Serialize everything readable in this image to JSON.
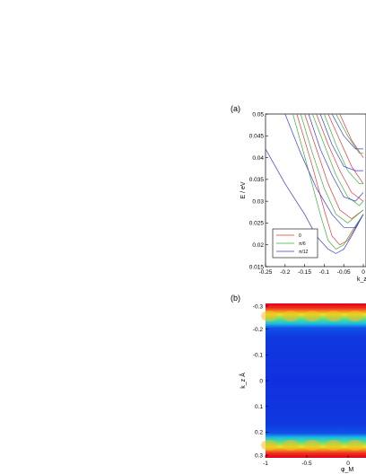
{
  "chart_data": [
    {
      "panel_label": "(a)",
      "type": "line",
      "xlabel": "k_z Å",
      "ylabel": "E / eV",
      "xlim": [
        -0.25,
        0.0
      ],
      "ylim": [
        0.015,
        0.05
      ],
      "x_ticks": [
        "-0.25",
        "-0.2",
        "-0.15",
        "-0.1",
        "-0.05",
        "0"
      ],
      "y_ticks": [
        "0.015",
        "0.02",
        "0.025",
        "0.03",
        "0.035",
        "0.04",
        "0.045",
        "0.05"
      ],
      "legend_position": "bottom-left",
      "legend": [
        {
          "label": "0",
          "color": "#e03a3a"
        },
        {
          "label": "π/6",
          "color": "#3ab03a"
        },
        {
          "label": "π/12",
          "color": "#3a3ae0"
        }
      ],
      "series": [
        {
          "color": "#e03a3a",
          "x": [
            -0.17,
            -0.13,
            -0.1,
            -0.08,
            -0.06,
            -0.04,
            -0.02,
            0.0
          ],
          "y": [
            0.05,
            0.038,
            0.028,
            0.022,
            0.02,
            0.021,
            0.024,
            0.027
          ]
        },
        {
          "color": "#3ab03a",
          "x": [
            -0.18,
            -0.14,
            -0.11,
            -0.09,
            -0.07,
            -0.05,
            -0.03,
            0.0
          ],
          "y": [
            0.05,
            0.037,
            0.027,
            0.021,
            0.019,
            0.02,
            0.023,
            0.027
          ]
        },
        {
          "color": "#3a3ae0",
          "x": [
            -0.25,
            -0.2,
            -0.15,
            -0.12,
            -0.09,
            -0.07,
            -0.05,
            -0.03,
            0.0
          ],
          "y": [
            0.042,
            0.034,
            0.027,
            0.022,
            0.019,
            0.018,
            0.019,
            0.022,
            0.027
          ]
        },
        {
          "color": "#e03a3a",
          "x": [
            -0.15,
            -0.12,
            -0.09,
            -0.06,
            -0.03,
            0.0
          ],
          "y": [
            0.05,
            0.042,
            0.034,
            0.028,
            0.026,
            0.028
          ]
        },
        {
          "color": "#3ab03a",
          "x": [
            -0.16,
            -0.13,
            -0.1,
            -0.07,
            -0.04,
            0.0
          ],
          "y": [
            0.05,
            0.041,
            0.033,
            0.027,
            0.025,
            0.028
          ]
        },
        {
          "color": "#3a3ae0",
          "x": [
            -0.2,
            -0.16,
            -0.12,
            -0.08,
            -0.05,
            -0.02,
            0.0
          ],
          "y": [
            0.05,
            0.041,
            0.033,
            0.027,
            0.024,
            0.024,
            0.027
          ]
        },
        {
          "color": "#e03a3a",
          "x": [
            -0.12,
            -0.09,
            -0.06,
            -0.03,
            0.0
          ],
          "y": [
            0.05,
            0.043,
            0.037,
            0.032,
            0.03
          ]
        },
        {
          "color": "#3ab03a",
          "x": [
            -0.13,
            -0.1,
            -0.07,
            -0.04,
            -0.01,
            0.0
          ],
          "y": [
            0.05,
            0.043,
            0.036,
            0.031,
            0.029,
            0.03
          ]
        },
        {
          "color": "#3a3ae0",
          "x": [
            -0.14,
            -0.11,
            -0.08,
            -0.05,
            -0.02,
            0.0
          ],
          "y": [
            0.05,
            0.042,
            0.036,
            0.031,
            0.03,
            0.032
          ]
        },
        {
          "color": "#e03a3a",
          "x": [
            -0.09,
            -0.06,
            -0.03,
            0.0
          ],
          "y": [
            0.05,
            0.044,
            0.038,
            0.034
          ]
        },
        {
          "color": "#3ab03a",
          "x": [
            -0.1,
            -0.07,
            -0.04,
            -0.01,
            0.0
          ],
          "y": [
            0.05,
            0.043,
            0.037,
            0.034,
            0.034
          ]
        },
        {
          "color": "#3a3ae0",
          "x": [
            -0.11,
            -0.08,
            -0.05,
            -0.02,
            0.0
          ],
          "y": [
            0.05,
            0.043,
            0.038,
            0.037,
            0.037
          ]
        },
        {
          "color": "#e03a3a",
          "x": [
            -0.06,
            -0.03,
            0.0
          ],
          "y": [
            0.05,
            0.044,
            0.04
          ]
        },
        {
          "color": "#3ab03a",
          "x": [
            -0.07,
            -0.04,
            -0.01,
            0.0
          ],
          "y": [
            0.05,
            0.045,
            0.041,
            0.041
          ]
        },
        {
          "color": "#3a3ae0",
          "x": [
            -0.08,
            -0.05,
            -0.02,
            0.0
          ],
          "y": [
            0.05,
            0.045,
            0.042,
            0.042
          ]
        }
      ]
    },
    {
      "panel_label": "(b)",
      "type": "heatmap",
      "xlabel": "φ_M",
      "ylabel": "k_z Å",
      "xlim": [
        -1,
        0
      ],
      "ylim": [
        -0.3,
        0.3
      ],
      "x_ticks": [
        "-1",
        "-0.5",
        "0"
      ],
      "y_ticks": [
        "-0.3",
        "-0.2",
        "-0.1",
        "0",
        "0.1",
        "0.2",
        "0.3"
      ],
      "colors": {
        "high": "#e0001a",
        "mid_high": "#f0e020",
        "mid": "#20e0c0",
        "low": "#1030e0"
      }
    }
  ]
}
